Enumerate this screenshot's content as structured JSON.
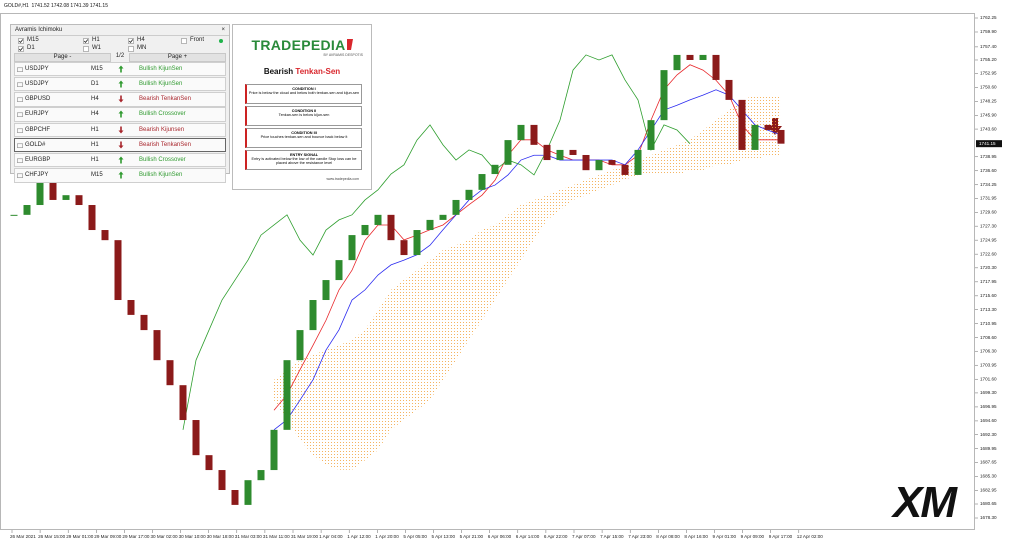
{
  "window": {
    "header": "GOLD#,H1  1741.52 1742.08 1741.39 1741.15"
  },
  "panel": {
    "title": "Avramis Ichimoku",
    "checkboxes": [
      {
        "label": "M15",
        "checked": true
      },
      {
        "label": "H1",
        "checked": true
      },
      {
        "label": "H4",
        "checked": true
      },
      {
        "label": "Front",
        "checked": false
      },
      {
        "label": "D1",
        "checked": true
      },
      {
        "label": "W1",
        "checked": false
      },
      {
        "label": "MN",
        "checked": false
      }
    ],
    "pager": {
      "prev": "Page -",
      "page": "1/2",
      "next": "Page +"
    },
    "rows": [
      {
        "symbol": "USDJPY",
        "timeframe": "M15",
        "arrow": "up",
        "signal": "Bullish KijunSen",
        "color": "#2f9a2f"
      },
      {
        "symbol": "USDJPY",
        "timeframe": "D1",
        "arrow": "up",
        "signal": "Bullish KijunSen",
        "color": "#2f9a2f"
      },
      {
        "symbol": "GBPUSD",
        "timeframe": "H4",
        "arrow": "down",
        "signal": "Bearish TenkanSen",
        "color": "#a8262c"
      },
      {
        "symbol": "EURJPY",
        "timeframe": "H4",
        "arrow": "up",
        "signal": "Bullish Crossover",
        "color": "#2f9a2f"
      },
      {
        "symbol": "GBPCHF",
        "timeframe": "H1",
        "arrow": "down",
        "signal": "Bearish Kijunsen",
        "color": "#a8262c"
      },
      {
        "symbol": "GOLD#",
        "timeframe": "H1",
        "arrow": "down",
        "signal": "Bearish TenkanSen",
        "color": "#a8262c"
      },
      {
        "symbol": "EURGBP",
        "timeframe": "H1",
        "arrow": "up",
        "signal": "Bullish Crossover",
        "color": "#2f9a2f"
      },
      {
        "symbol": "CHFJPY",
        "timeframe": "M15",
        "arrow": "up",
        "signal": "Bullish KijunSen",
        "color": "#2f9a2f"
      }
    ]
  },
  "card": {
    "brand": "TRADEPEDIA",
    "byline": "BY AVRAMIS DESPOTIS",
    "heading": "Bearish",
    "heading_accent": "Tenkan-Sen",
    "conditions": [
      {
        "title": "CONDITION I",
        "text": "Price is below the cloud and below both tenkan-sen and kijun-sen"
      },
      {
        "title": "CONDITION II",
        "text": "Tenkan-sen is below kijun-sen"
      },
      {
        "title": "CONDITION III",
        "text": "Price touches tenkan-sen and bounce back below it"
      },
      {
        "title": "ENTRY SIGNAL",
        "text": "Entry is activated below the low of the candle Stop loss can be placed above the resistance level"
      }
    ],
    "footer": "www.tradepedia.com"
  },
  "logo": "XM",
  "chart_data": {
    "type": "candlestick",
    "up_color": "#2e8b2e",
    "down_color": "#8b1a1a",
    "ylim": [
      1678.3,
      1762.25
    ],
    "yticks": [
      1762.25,
      {
        "value": 1759.9,
        "label": "1759.90"
      },
      {
        "value": 1757.4,
        "label": "1757.40"
      },
      {
        "value": 1755.2,
        "label": "1755.20"
      },
      1752.95,
      {
        "value": 1750.6,
        "label": "1750.60"
      },
      1748.25,
      {
        "value": 1745.9,
        "label": "1745.90"
      },
      {
        "value": 1743.6,
        "label": "1743.60"
      },
      1738.95,
      {
        "value": 1736.6,
        "label": "1736.60"
      },
      1734.25,
      1731.95,
      {
        "value": 1729.6,
        "label": "1729.60"
      },
      {
        "value": 1727.3,
        "label": "1727.30"
      },
      1724.95,
      {
        "value": 1722.6,
        "label": "1722.60"
      },
      {
        "value": 1720.3,
        "label": "1720.30"
      },
      1717.95,
      {
        "value": 1715.6,
        "label": "1715.60"
      },
      {
        "value": 1713.3,
        "label": "1713.30"
      },
      1710.95,
      {
        "value": 1708.6,
        "label": "1708.60"
      },
      {
        "value": 1706.3,
        "label": "1706.30"
      },
      1703.95,
      {
        "value": 1701.6,
        "label": "1701.60"
      },
      {
        "value": 1699.3,
        "label": "1699.30"
      },
      1696.95,
      {
        "value": 1694.6,
        "label": "1694.60"
      },
      {
        "value": 1692.3,
        "label": "1692.30"
      },
      1689.95,
      1687.65,
      {
        "value": 1685.3,
        "label": "1685.30"
      },
      1682.95,
      1680.65,
      {
        "value": 1678.3,
        "label": "1678.30"
      }
    ],
    "last_price": 1741.15,
    "x_labels": [
      "26 Mar 2021",
      "26 Mar 15:00",
      "29 Mar 01:00",
      "29 Mar 09:00",
      "29 Mar 17:00",
      "30 Mar 02:00",
      "30 Mar 10:00",
      "30 Mar 18:00",
      "31 Mar 03:00",
      "31 Mar 11:00",
      "31 Mar 19:00",
      "1 Apr 04:00",
      "1 Apr 12:00",
      "1 Apr 20:00",
      "5 Apr 05:00",
      "5 Apr 13:00",
      "5 Apr 21:00",
      "6 Apr 06:00",
      "6 Apr 14:00",
      "6 Apr 22:00",
      "7 Apr 07:00",
      "7 Apr 15:00",
      "7 Apr 23:00",
      "8 Apr 08:00",
      "8 Apr 16:00",
      "9 Apr 01:00",
      "9 Apr 09:00",
      "9 Apr 17:00",
      "12 Apr 02:00"
    ],
    "close": [
      1729.2,
      1730.85,
      1735.05,
      1731.7,
      1732.5,
      1730.85,
      1726.65,
      1724.95,
      1714.9,
      1712.4,
      1709.85,
      1704.8,
      1700.6,
      1694.75,
      1688.85,
      1686.35,
      1683.0,
      1680.5,
      1684.65,
      1686.35,
      1693.1,
      1704.8,
      1709.85,
      1714.9,
      1718.25,
      1721.6,
      1725.8,
      1727.5,
      1729.2,
      1724.95,
      1722.45,
      1726.65,
      1728.35,
      1729.2,
      1731.7,
      1733.4,
      1736.05,
      1737.6,
      1741.75,
      1744.3,
      1740.95,
      1738.4,
      1740.1,
      1739.25,
      1736.7,
      1738.4,
      1737.6,
      1735.9,
      1740.1,
      1745.1,
      1753.5,
      1756.05,
      1755.2,
      1756.05,
      1751.85,
      1748.5,
      1740.1,
      1744.3,
      1743.45,
      1741.15
    ],
    "series": [
      {
        "name": "Tenkan-sen",
        "color": "#e8272b",
        "values": [
          null,
          null,
          null,
          null,
          null,
          null,
          null,
          null,
          null,
          null,
          null,
          null,
          null,
          null,
          null,
          null,
          null,
          null,
          null,
          null,
          1696.4,
          1699.0,
          1703.2,
          1707.3,
          1711.5,
          1716.6,
          1719.9,
          1724.9,
          1727.5,
          1727.5,
          1725.0,
          1725.8,
          1726.7,
          1727.5,
          1729.2,
          1730.9,
          1732.5,
          1735.0,
          1739.2,
          1741.8,
          1741.8,
          1740.1,
          1739.2,
          1738.4,
          1738.4,
          1738.4,
          1737.6,
          1737.6,
          1739.2,
          1745.1,
          1750.2,
          1752.7,
          1754.4,
          1753.5,
          1751.8,
          1749.3,
          1744.3,
          1741.8,
          1741.8,
          1741.8
        ]
      },
      {
        "name": "Kijun-sen",
        "color": "#2b2bf0",
        "values": [
          null,
          null,
          null,
          null,
          null,
          null,
          null,
          null,
          null,
          null,
          null,
          null,
          null,
          null,
          null,
          null,
          null,
          null,
          null,
          null,
          1693.1,
          1694.8,
          1698.1,
          1701.5,
          1706.5,
          1709.9,
          1714.9,
          1716.6,
          1719.1,
          1720.8,
          1721.6,
          1722.5,
          1724.1,
          1726.7,
          1729.2,
          1731.7,
          1733.4,
          1734.2,
          1735.9,
          1738.4,
          1739.2,
          1739.2,
          1738.4,
          1738.4,
          1738.4,
          1738.4,
          1738.4,
          1737.6,
          1740.1,
          1743.4,
          1746.8,
          1747.6,
          1748.5,
          1749.3,
          1750.2,
          1749.3,
          1746.8,
          1744.3,
          1743.4,
          1742.6
        ]
      },
      {
        "name": "Chikou Span",
        "color": "#2e9e2e",
        "values": [
          null,
          null,
          null,
          null,
          null,
          null,
          null,
          null,
          null,
          null,
          null,
          null,
          null,
          1693.1,
          1704.8,
          1709.85,
          1714.9,
          1718.25,
          1721.6,
          1725.8,
          1727.5,
          1729.2,
          1724.95,
          1722.45,
          1726.65,
          1728.35,
          1729.2,
          1731.7,
          1733.4,
          1736.05,
          1737.6,
          1741.75,
          1744.3,
          1740.95,
          1738.4,
          1740.1,
          1739.25,
          1736.7,
          1738.4,
          1737.6,
          1735.9,
          1740.1,
          1745.1,
          1753.5,
          1756.05,
          1755.2,
          1756.05,
          1751.85,
          1748.5,
          1740.1,
          1744.3,
          1743.45,
          1741.15,
          null,
          null,
          null,
          null,
          null,
          null,
          null
        ]
      }
    ],
    "cloud": {
      "color": "#f2a23a",
      "span_a": [
        null,
        null,
        null,
        null,
        null,
        null,
        null,
        null,
        null,
        null,
        null,
        null,
        null,
        null,
        null,
        null,
        null,
        null,
        null,
        null,
        1701.5,
        1703.2,
        1704.8,
        1705.7,
        1706.5,
        1707.3,
        1708.2,
        1709.9,
        1713.2,
        1716.6,
        1718.3,
        1719.9,
        1721.6,
        1723.3,
        1724.1,
        1725.0,
        1726.7,
        1727.5,
        1729.2,
        1730.9,
        1731.7,
        1732.5,
        1733.4,
        1734.2,
        1735.1,
        1735.9,
        1736.7,
        1737.6,
        1738.4,
        1739.2,
        1740.1,
        1740.9,
        1741.8,
        1743.4,
        1745.1,
        1746.8,
        1748.5,
        1749.3,
        1749.3,
        1749.3
      ],
      "span_b": [
        null,
        null,
        null,
        null,
        null,
        null,
        null,
        null,
        null,
        null,
        null,
        null,
        null,
        null,
        null,
        null,
        null,
        null,
        null,
        null,
        1698.1,
        1694.8,
        1691.4,
        1688.9,
        1687.2,
        1686.4,
        1686.4,
        1688.0,
        1689.7,
        1693.1,
        1694.8,
        1696.4,
        1698.1,
        1701.5,
        1704.8,
        1708.2,
        1711.5,
        1714.9,
        1718.3,
        1721.6,
        1725.0,
        1728.3,
        1730.0,
        1731.7,
        1732.5,
        1733.4,
        1734.2,
        1735.1,
        1735.9,
        1735.9,
        1735.9,
        1735.9,
        1736.7,
        1736.7,
        1737.6,
        1737.6,
        1738.4,
        1738.4,
        1739.2,
        1739.2
      ]
    }
  }
}
